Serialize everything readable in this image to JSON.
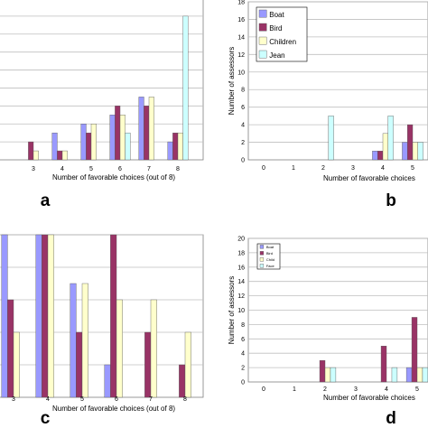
{
  "colors": {
    "boat": "#9999ff",
    "bird": "#993366",
    "children": "#ffffcc",
    "jean": "#ccffff",
    "grid": "#bfbfbf",
    "axis": "#808080"
  },
  "chart_data": [
    {
      "panel": "a",
      "type": "bar",
      "categories": [
        "3",
        "4",
        "5",
        "6",
        "7",
        "8"
      ],
      "series": [
        {
          "values": [
            0,
            3,
            4,
            5,
            7,
            2
          ]
        },
        {
          "values": [
            2,
            1,
            3,
            6,
            6,
            3
          ]
        },
        {
          "values": [
            1,
            1,
            4,
            5,
            7,
            3
          ]
        },
        {
          "values": [
            0,
            0,
            0,
            3,
            0,
            16
          ]
        }
      ],
      "xlabel": "Number of favorable choices (out of 8)",
      "ylabel": "",
      "yticks": [],
      "grid": true
    },
    {
      "panel": "b",
      "type": "bar",
      "categories": [
        "0",
        "1",
        "2",
        "3",
        "4",
        "5"
      ],
      "series": [
        {
          "name": "Boat",
          "values": [
            0,
            0,
            0,
            0,
            1,
            2
          ]
        },
        {
          "name": "Bird",
          "values": [
            0,
            0,
            0,
            0,
            1,
            4
          ]
        },
        {
          "name": "Children",
          "values": [
            0,
            0,
            0,
            0,
            3,
            2
          ]
        },
        {
          "name": "Jean",
          "values": [
            0,
            0,
            5,
            0,
            5,
            2
          ]
        }
      ],
      "xlabel": "Number of favorable choices",
      "ylabel": "Number of assessors",
      "ylim": [
        0,
        18
      ],
      "yticks": [
        0,
        2,
        4,
        6,
        8,
        10,
        12,
        14,
        16,
        18
      ],
      "legend_position": "top-left",
      "grid": true
    },
    {
      "panel": "c",
      "type": "bar",
      "categories": [
        "3",
        "4",
        "5",
        "6",
        "7",
        "8"
      ],
      "series": [
        {
          "values": [
            10,
            10,
            7,
            2,
            0,
            0
          ]
        },
        {
          "values": [
            6,
            10,
            4,
            10,
            4,
            2
          ]
        },
        {
          "values": [
            4,
            10,
            7,
            6,
            6,
            4
          ]
        },
        {
          "values": [
            0,
            0,
            0,
            0,
            0,
            0
          ]
        }
      ],
      "xlabel": "Number of favorable choices (out of 8)",
      "ylabel": "",
      "yticks": [],
      "grid": true
    },
    {
      "panel": "d",
      "type": "bar",
      "categories": [
        "0",
        "1",
        "2",
        "3",
        "4",
        "5"
      ],
      "series": [
        {
          "name": "Boat",
          "values": [
            0,
            0,
            0,
            0,
            0,
            2
          ]
        },
        {
          "name": "Bird",
          "values": [
            0,
            0,
            3,
            0,
            5,
            9
          ]
        },
        {
          "name": "Child",
          "values": [
            0,
            0,
            2,
            0,
            0,
            2
          ]
        },
        {
          "name": "Face",
          "values": [
            0,
            0,
            2,
            0,
            2,
            2
          ]
        }
      ],
      "xlabel": "Number of favorable choices",
      "ylabel": "Number of assessors",
      "ylim": [
        0,
        20
      ],
      "yticks": [
        0,
        2,
        4,
        6,
        8,
        10,
        12,
        14,
        16,
        18,
        20
      ],
      "legend_position": "top-left",
      "grid": true
    }
  ],
  "panel_letters": [
    "a",
    "b",
    "c",
    "d"
  ]
}
